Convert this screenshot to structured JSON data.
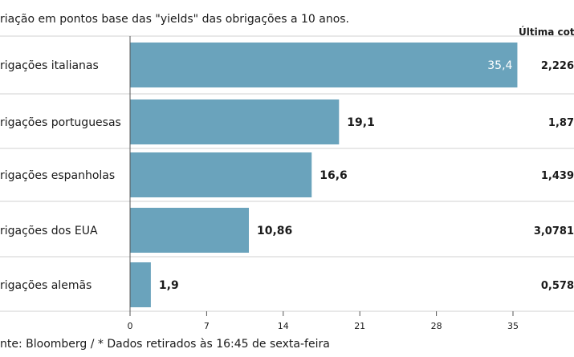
{
  "subtitle": "riação em pontos base das \"yields\" das obrigações a 10 anos.",
  "last_quote_header": "Última cotaç",
  "source": "nte: Bloomberg / * Dados retirados às 16:45 de sexta-feira",
  "colors": {
    "bar": "#6aa3bc",
    "inner_label": "#ffffff",
    "grid": "#d0d0d0",
    "axis": "#555555"
  },
  "chart_data": {
    "type": "bar",
    "orientation": "horizontal",
    "categories": [
      "rigações italianas",
      "rigações portuguesas",
      "rigações espanholas",
      "rigações dos EUA",
      "rigações alemãs"
    ],
    "values": [
      35.4,
      19.1,
      16.6,
      10.86,
      1.9
    ],
    "value_labels": [
      "35,4",
      "19,1",
      "16,6",
      "10,86",
      "1,9"
    ],
    "last_quote": [
      "2,226",
      "1,87",
      "1,439",
      "3,0781",
      "0,578"
    ],
    "xlim": [
      0,
      38
    ],
    "xticks": [
      0,
      7,
      14,
      21,
      28,
      35
    ],
    "xtick_labels": [
      "0",
      "7",
      "14",
      "21",
      "28",
      "35"
    ],
    "grid": false
  }
}
